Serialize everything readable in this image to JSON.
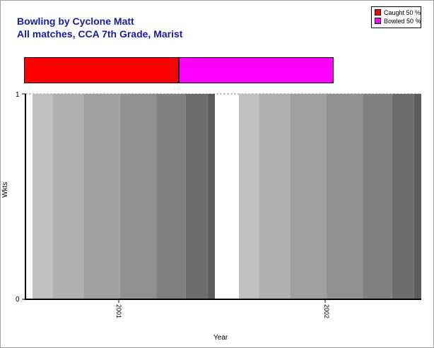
{
  "title_line1": "Bowling by Cyclone Matt",
  "title_line2": "All matches, CCA 7th Grade, Marist",
  "legend": [
    {
      "label": "Caught 50 %",
      "color": "#ff0000"
    },
    {
      "label": "Bowled 50 %",
      "color": "#ff00ff"
    }
  ],
  "chart_data": {
    "type": "bar",
    "title": "Bowling by Cyclone Matt",
    "subtitle": "All matches, CCA 7th Grade, Marist",
    "xlabel": "Year",
    "ylabel": "Wkts",
    "categories": [
      "2001",
      "2002"
    ],
    "ylim": [
      0,
      1
    ],
    "yticks": [
      "0",
      "1"
    ],
    "dismissal_split": [
      {
        "name": "Caught",
        "percent": 50,
        "color": "#ff0000"
      },
      {
        "name": "Bowled",
        "percent": 50,
        "color": "#ff00ff"
      }
    ],
    "grid": false,
    "legend_position": "top-right"
  }
}
